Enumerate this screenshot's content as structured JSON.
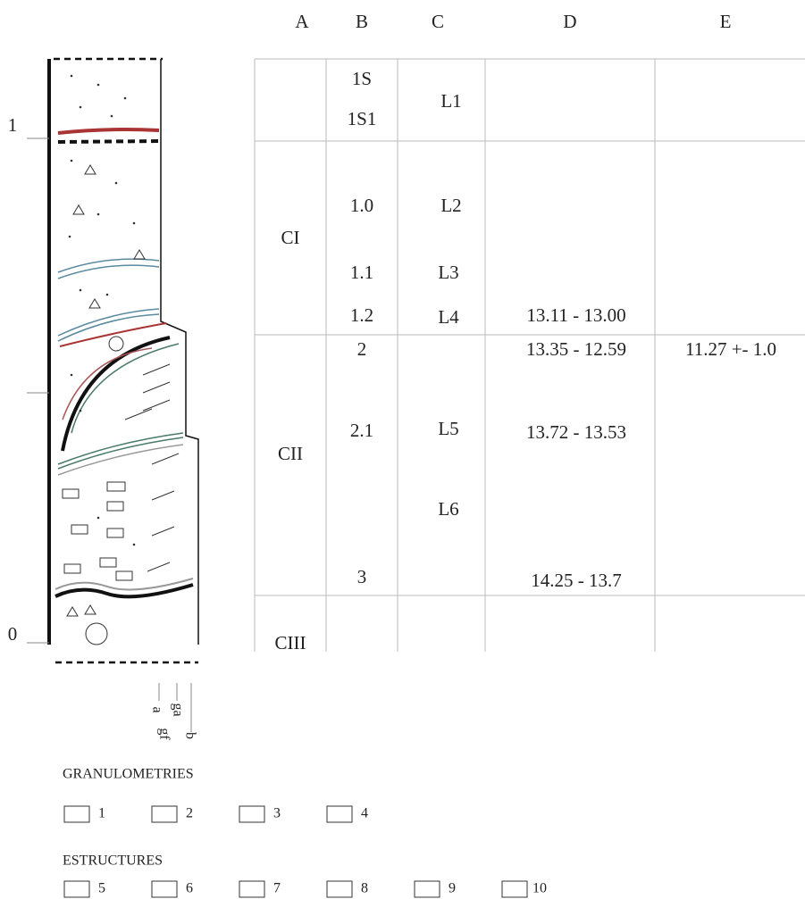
{
  "scale": {
    "labels": [
      "1",
      "0"
    ]
  },
  "columns": [
    "A",
    "B",
    "C",
    "D",
    "E"
  ],
  "rows": [
    {
      "B": [
        "1S",
        "1S1"
      ],
      "C": [
        "L1"
      ]
    },
    {
      "A": "CI",
      "B": [
        "1.0",
        "1.1",
        "1.2"
      ],
      "C": [
        "L2",
        "L3",
        "L4"
      ],
      "D": [
        "13.11 - 13.00"
      ]
    },
    {
      "A": "CII",
      "B": [
        "2",
        "2.1",
        "3"
      ],
      "C": [
        "L5",
        "L6"
      ],
      "D": [
        "13.35 - 12.59",
        "13.72 - 13.53",
        "14.25 - 13.7"
      ],
      "E": [
        "11.27 +- 1.0"
      ]
    },
    {
      "A": "CIII"
    }
  ],
  "column_labels": [
    "a",
    "ga",
    "gf",
    "b"
  ],
  "legend": {
    "granulometries": {
      "title": "GRANULOMETRIES",
      "items": [
        "1",
        "2",
        "3",
        "4"
      ]
    },
    "structures": {
      "title": "ESTRUCTURES",
      "items": [
        "5",
        "6",
        "7",
        "8",
        "9",
        "10"
      ]
    }
  }
}
